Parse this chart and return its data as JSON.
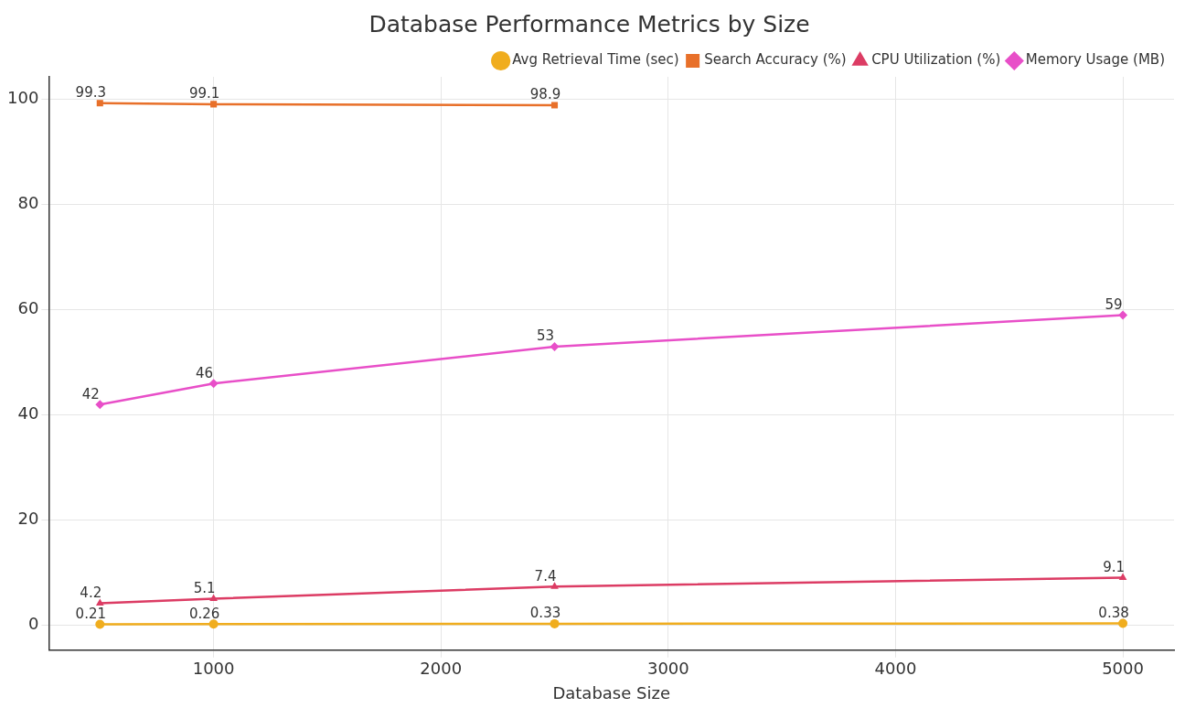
{
  "chart_data": {
    "type": "line",
    "title": "Database Performance Metrics by Size",
    "xlabel": "Database Size",
    "x": [
      500,
      1000,
      2500,
      5000
    ],
    "series": [
      {
        "name": "Avg Retrieval Time (sec)",
        "color": "#f0ad1e",
        "marker": "circle",
        "values": [
          0.21,
          0.26,
          0.33,
          0.38
        ]
      },
      {
        "name": "Search Accuracy (%)",
        "color": "#e8702a",
        "marker": "square",
        "values": [
          99.3,
          99.1,
          98.9,
          null
        ]
      },
      {
        "name": "CPU Utilization (%)",
        "color": "#dc3c64",
        "marker": "triangle",
        "values": [
          4.2,
          5.1,
          7.4,
          9.1
        ]
      },
      {
        "name": "Memory Usage (MB)",
        "color": "#e84fc8",
        "marker": "diamond",
        "values": [
          42,
          46,
          53,
          59
        ]
      }
    ],
    "xlim": [
      275,
      5225
    ],
    "xticks": [
      1000,
      2000,
      3000,
      4000,
      5000
    ],
    "ylim": [
      -4.7,
      104.3
    ],
    "yticks": [
      0,
      20,
      40,
      60,
      80,
      100
    ],
    "grid": true,
    "legend": "top right",
    "data_labels": true
  }
}
